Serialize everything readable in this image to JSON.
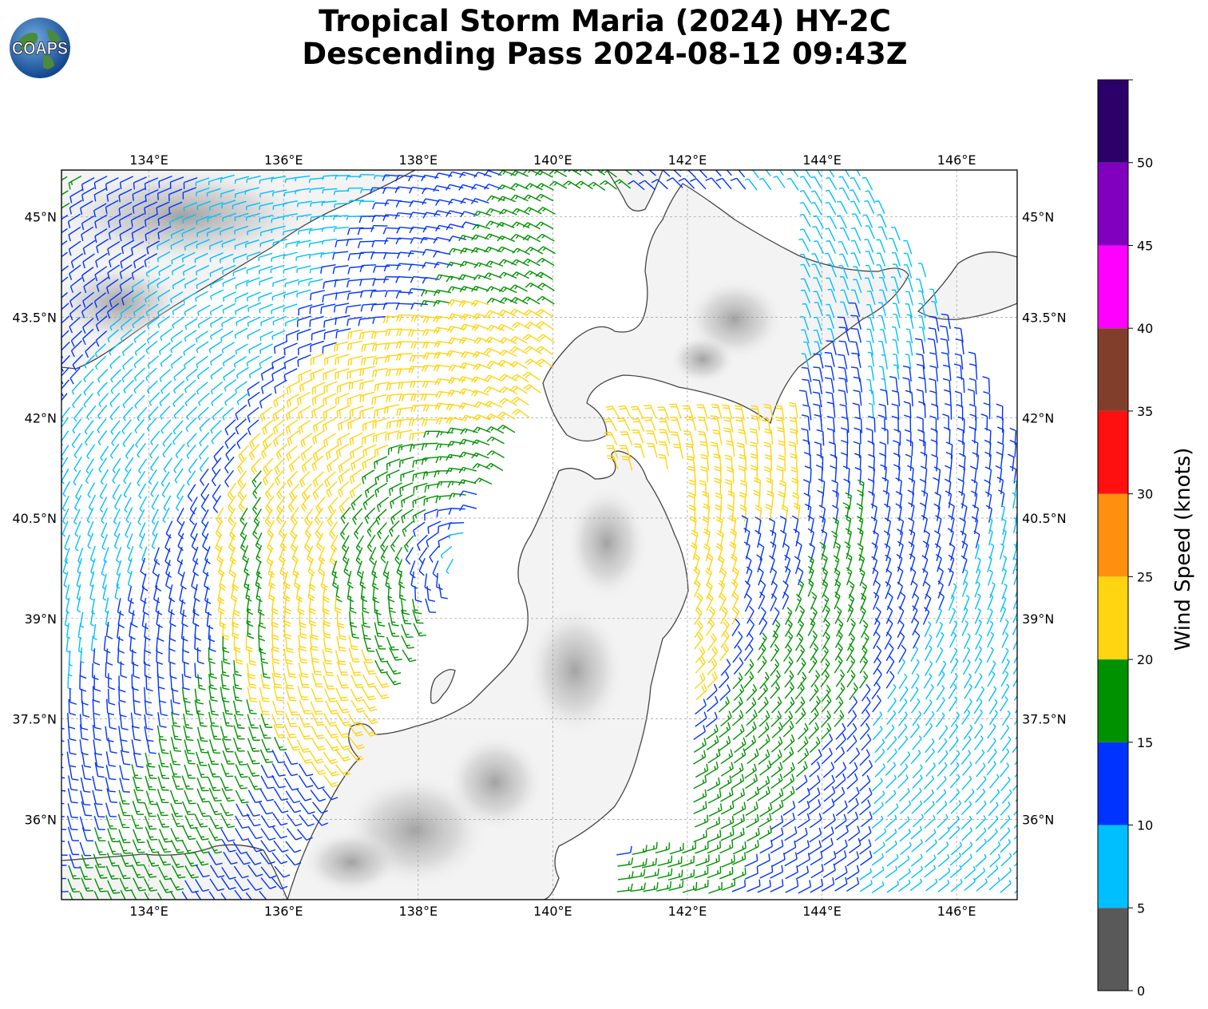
{
  "title": {
    "line1": "Tropical Storm Maria (2024) HY-2C",
    "line2": "Descending Pass 2024-08-12 09:43Z"
  },
  "logo": {
    "text": "COAPS",
    "icon": "globe-logo-icon"
  },
  "map": {
    "lon_range": [
      132.7,
      146.9
    ],
    "lat_range": [
      34.8,
      45.7
    ],
    "lon_ticks": [
      "134°E",
      "136°E",
      "138°E",
      "140°E",
      "142°E",
      "144°E",
      "146°E"
    ],
    "lat_ticks": [
      "36°N",
      "37.5°N",
      "39°N",
      "40.5°N",
      "42°N",
      "43.5°N",
      "45°N"
    ],
    "grid": true,
    "storm_center": {
      "lon": 138.9,
      "lat": 39.8
    }
  },
  "colorbar": {
    "label": "Wind Speed (knots)",
    "ticks": [
      "0",
      "5",
      "10",
      "15",
      "20",
      "25",
      "30",
      "35",
      "40",
      "45",
      "50"
    ],
    "bins": [
      {
        "from": 0,
        "to": 5,
        "color": "#595959"
      },
      {
        "from": 5,
        "to": 10,
        "color": "#00bfff"
      },
      {
        "from": 10,
        "to": 15,
        "color": "#0033ff"
      },
      {
        "from": 15,
        "to": 20,
        "color": "#009100"
      },
      {
        "from": 20,
        "to": 25,
        "color": "#ffd411"
      },
      {
        "from": 25,
        "to": 30,
        "color": "#ff900f"
      },
      {
        "from": 30,
        "to": 35,
        "color": "#ff1010"
      },
      {
        "from": 35,
        "to": 40,
        "color": "#813f2b"
      },
      {
        "from": 40,
        "to": 45,
        "color": "#ff00ff"
      },
      {
        "from": 45,
        "to": 50,
        "color": "#8100bf"
      },
      {
        "from": 50,
        "to": 55,
        "color": "#2b0068"
      }
    ]
  }
}
